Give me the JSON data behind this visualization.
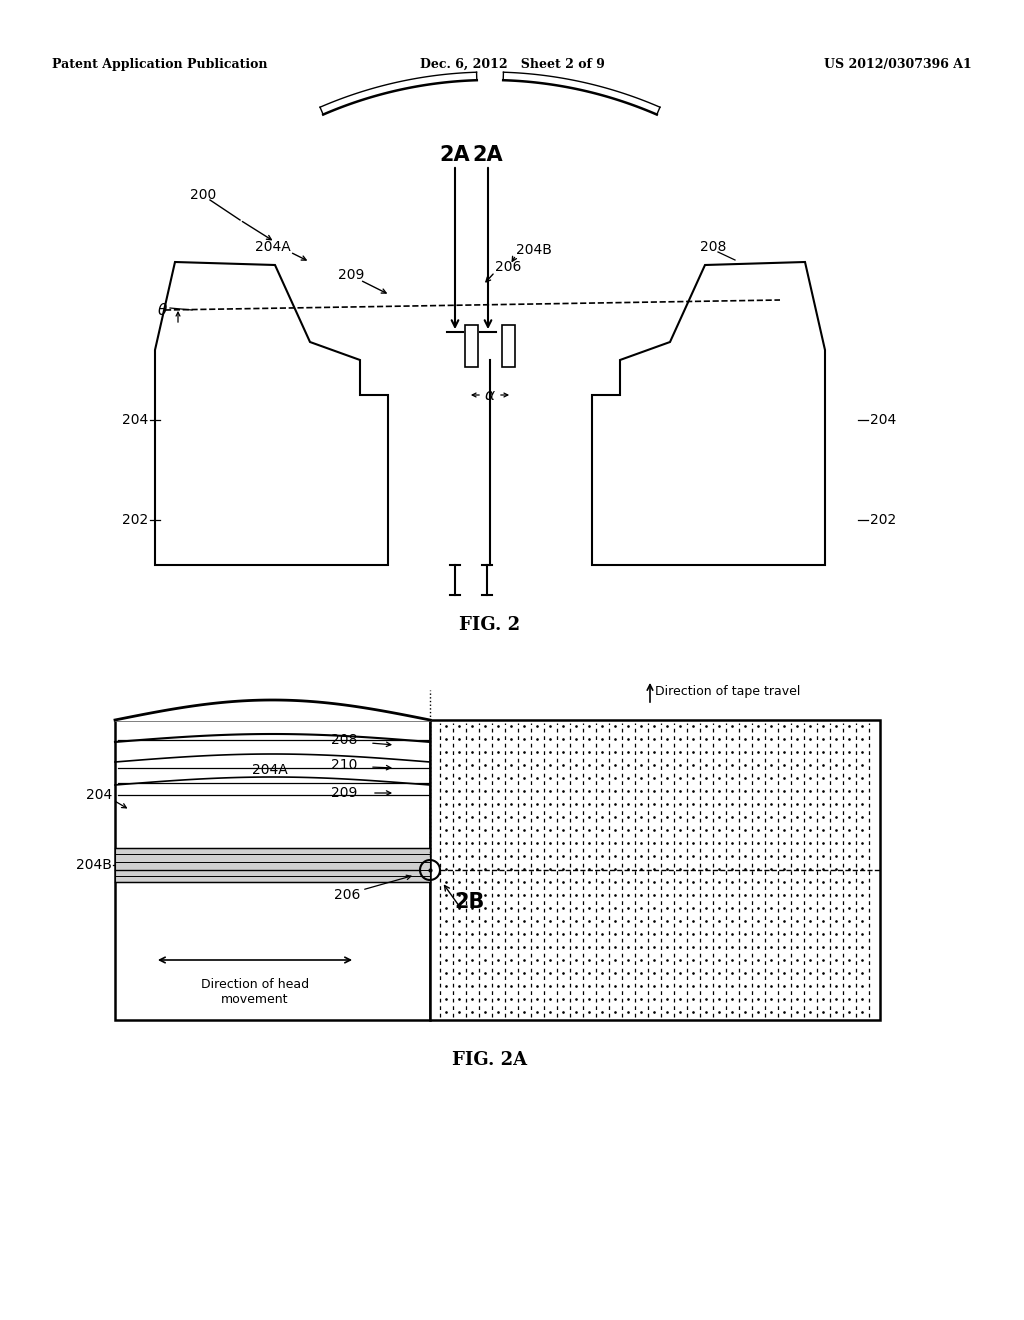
{
  "bg_color": "#ffffff",
  "header_left": "Patent Application Publication",
  "header_center": "Dec. 6, 2012   Sheet 2 of 9",
  "header_right": "US 2012/0307396 A1"
}
